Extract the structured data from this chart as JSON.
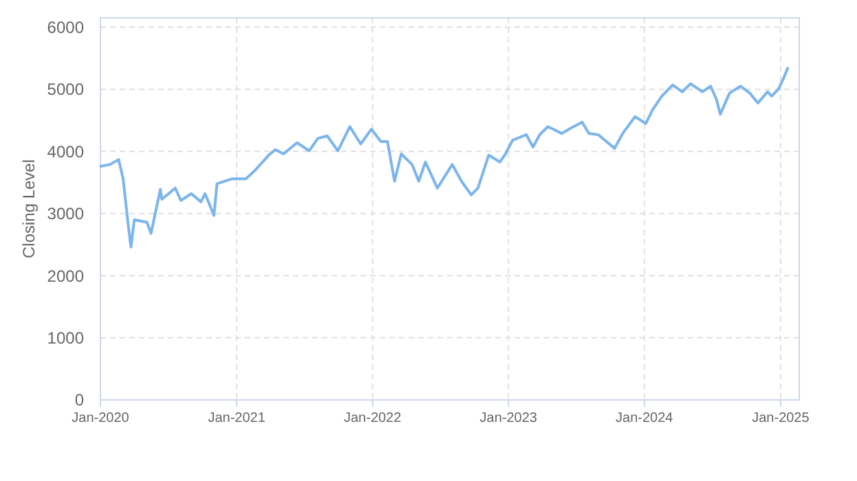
{
  "chart_data": {
    "type": "line",
    "ylabel": "Closing Level",
    "x": [
      "2020-01-02",
      "2020-01-27",
      "2020-02-19",
      "2020-03-02",
      "2020-03-16",
      "2020-03-23",
      "2020-04-01",
      "2020-05-05",
      "2020-05-16",
      "2020-06-10",
      "2020-06-14",
      "2020-07-20",
      "2020-08-04",
      "2020-09-01",
      "2020-09-27",
      "2020-10-08",
      "2020-11-01",
      "2020-11-09",
      "2020-12-20",
      "2021-01-26",
      "2021-02-20",
      "2021-03-28",
      "2021-04-15",
      "2021-05-07",
      "2021-06-12",
      "2021-07-15",
      "2021-08-07",
      "2021-09-01",
      "2021-09-30",
      "2021-11-01",
      "2021-11-30",
      "2021-12-29",
      "2022-01-23",
      "2022-02-10",
      "2022-03-01",
      "2022-03-19",
      "2022-04-17",
      "2022-05-05",
      "2022-05-23",
      "2022-06-24",
      "2022-08-03",
      "2022-08-28",
      "2022-09-23",
      "2022-10-11",
      "2022-11-09",
      "2022-12-09",
      "2022-12-24",
      "2023-01-12",
      "2023-02-18",
      "2023-03-08",
      "2023-03-26",
      "2023-04-17",
      "2023-05-24",
      "2023-06-19",
      "2023-07-18",
      "2023-08-05",
      "2023-08-30",
      "2023-10-13",
      "2023-11-04",
      "2023-12-07",
      "2024-01-05",
      "2024-01-23",
      "2024-02-17",
      "2024-03-17",
      "2024-04-12",
      "2024-05-04",
      "2024-06-05",
      "2024-06-27",
      "2024-07-12",
      "2024-07-23",
      "2024-08-17",
      "2024-09-15",
      "2024-10-10",
      "2024-11-01",
      "2024-11-27",
      "2024-12-08",
      "2024-12-26",
      "2025-01-09",
      "2025-01-20"
    ],
    "series": [
      {
        "color": "#7cb5ec",
        "values": [
          3760,
          3790,
          3870,
          3560,
          2800,
          2460,
          2900,
          2860,
          2680,
          3390,
          3230,
          3410,
          3210,
          3320,
          3190,
          3320,
          2970,
          3480,
          3560,
          3560,
          3700,
          3940,
          4030,
          3960,
          4140,
          4010,
          4210,
          4250,
          4010,
          4400,
          4120,
          4360,
          4160,
          4160,
          3520,
          3960,
          3790,
          3520,
          3830,
          3410,
          3790,
          3520,
          3300,
          3410,
          3940,
          3830,
          3960,
          4180,
          4270,
          4070,
          4270,
          4400,
          4290,
          4380,
          4470,
          4290,
          4270,
          4050,
          4290,
          4560,
          4450,
          4670,
          4890,
          5070,
          4960,
          5090,
          4960,
          5050,
          4850,
          4600,
          4940,
          5050,
          4940,
          4780,
          4960,
          4890,
          5000,
          5180,
          5340
        ]
      }
    ],
    "xlim": [
      "2020-01-01",
      "2025-02-20"
    ],
    "xticks": [
      {
        "value": "2020-01-01",
        "label": "Jan-2020"
      },
      {
        "value": "2021-01-01",
        "label": "Jan-2021"
      },
      {
        "value": "2022-01-01",
        "label": "Jan-2022"
      },
      {
        "value": "2023-01-01",
        "label": "Jan-2023"
      },
      {
        "value": "2024-01-01",
        "label": "Jan-2024"
      },
      {
        "value": "2025-01-01",
        "label": "Jan-2025"
      }
    ],
    "ylim": [
      0,
      6150
    ],
    "yticks": [
      0,
      1000,
      2000,
      3000,
      4000,
      5000,
      6000
    ],
    "grid": true,
    "marker": "none",
    "line_style": "solid"
  }
}
